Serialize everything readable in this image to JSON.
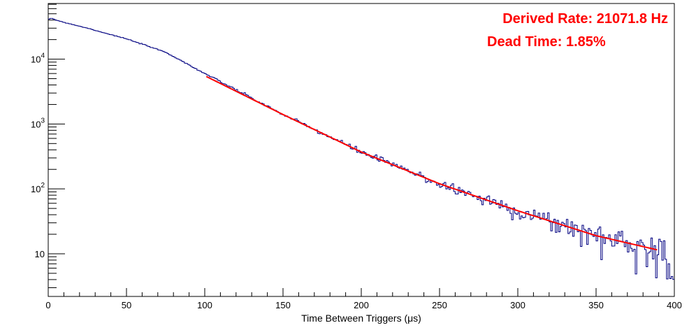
{
  "chart_data": {
    "type": "histogram",
    "title": "",
    "xlabel": "Time Between Triggers (μs)",
    "ylabel": "",
    "xlim": [
      0,
      400
    ],
    "ylim": [
      2.2,
      72000
    ],
    "yscale": "log",
    "grid": false,
    "legend": "none",
    "x_ticks": [
      0,
      50,
      100,
      150,
      200,
      250,
      300,
      350,
      400
    ],
    "y_ticks": [
      {
        "value": 10,
        "base": "10",
        "exp": ""
      },
      {
        "value": 100,
        "base": "10",
        "exp": "2"
      },
      {
        "value": 1000,
        "base": "10",
        "exp": "3"
      },
      {
        "value": 10000,
        "base": "10",
        "exp": "4"
      }
    ],
    "histogram": {
      "name": "",
      "color": "#000080",
      "bin_width": 1,
      "x_start": 0,
      "points": [
        [
          0,
          40000
        ],
        [
          2,
          43000
        ],
        [
          5,
          40000
        ],
        [
          10,
          37000
        ],
        [
          25,
          30000
        ],
        [
          50,
          20500
        ],
        [
          75,
          12800
        ],
        [
          100,
          6000
        ],
        [
          150,
          1400
        ],
        [
          200,
          370
        ],
        [
          250,
          120
        ],
        [
          300,
          46
        ],
        [
          350,
          19
        ],
        [
          390,
          12
        ],
        [
          396,
          9
        ],
        [
          399,
          3
        ]
      ],
      "noise_seed": 7
    },
    "fit": {
      "name": "",
      "color": "#ff0000",
      "x_range": [
        101,
        389
      ],
      "points": [
        [
          101,
          5400
        ],
        [
          150,
          1400
        ],
        [
          200,
          370
        ],
        [
          250,
          120
        ],
        [
          300,
          46
        ],
        [
          350,
          19
        ],
        [
          389,
          11.5
        ]
      ]
    },
    "annotations": [
      {
        "id": "derived-rate",
        "text": "Derived Rate: 21071.8 Hz"
      },
      {
        "id": "dead-time",
        "text": "Dead Time: 1.85%"
      }
    ]
  },
  "colors": {
    "histogram": "#000080",
    "fit": "#ff0000",
    "annotation": "#ff0000",
    "axis": "#000000"
  }
}
